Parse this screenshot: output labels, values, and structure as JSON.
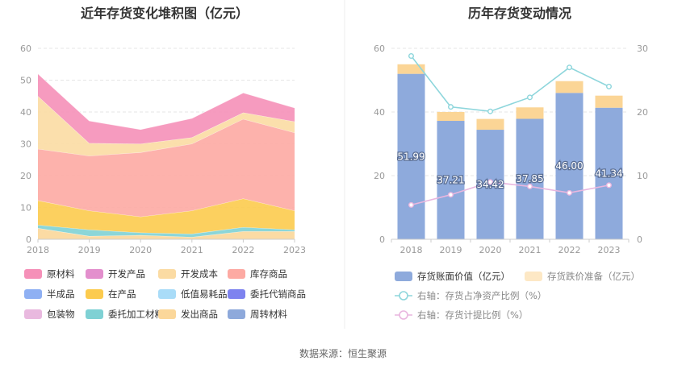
{
  "footer": {
    "source": "数据来源：恒生聚源"
  },
  "colors": {
    "原材料": "#f590b8",
    "开发产品": "#e38fcd",
    "开发成本": "#fbdba3",
    "库存商品": "#fdaaa3",
    "半成品": "#8fb0f3",
    "在产品": "#fccb4e",
    "低值易耗品": "#a9dcf8",
    "委托代销商品": "#7e83ef",
    "包装物": "#e9b9df",
    "委托加工材料": "#7fd1d4",
    "发出商品": "#fbd79a",
    "周转材料": "#8ea9db",
    "book_value": "#8eaadc",
    "impairment": "#fbd596",
    "ratio_line": "#8ed6dc",
    "provision_line": "#e9b6df",
    "divider": "#eeeeee",
    "axis": "#cccccc"
  },
  "chart_data": [
    {
      "type": "area",
      "stacked": true,
      "title": "近年存货变化堆积图（亿元）",
      "x": [
        "2018",
        "2019",
        "2020",
        "2021",
        "2022",
        "2023"
      ],
      "ylim": [
        0,
        60
      ],
      "yticks": [
        "0",
        "10",
        "20",
        "30",
        "40",
        "50",
        "60"
      ],
      "series": [
        {
          "name": "发出商品",
          "values": [
            3.5,
            1.0,
            1.3,
            0.7,
            2.5,
            2.5
          ]
        },
        {
          "name": "委托加工材料",
          "values": [
            1.0,
            2.0,
            0.8,
            1.0,
            1.3,
            0.5
          ]
        },
        {
          "name": "在产品",
          "values": [
            7.7,
            6.0,
            5.0,
            7.3,
            9.0,
            6.0
          ]
        },
        {
          "name": "库存商品",
          "values": [
            16.2,
            17.2,
            20.2,
            21.0,
            25.0,
            24.5
          ]
        },
        {
          "name": "开发成本",
          "values": [
            16.6,
            4.0,
            2.7,
            2.0,
            2.0,
            3.5
          ]
        },
        {
          "name": "原材料",
          "values": [
            7.0,
            7.0,
            4.5,
            6.0,
            6.2,
            4.3
          ]
        }
      ],
      "legend": [
        [
          "原材料",
          "开发产品",
          "开发成本",
          "库存商品"
        ],
        [
          "半成品",
          "在产品",
          "低值易耗品",
          "委托代销商品"
        ],
        [
          "包装物",
          "委托加工材料",
          "发出商品",
          "周转材料"
        ]
      ]
    },
    {
      "type": "bar",
      "stacked": true,
      "title": "历年存货变动情况",
      "categories": [
        "2018",
        "2019",
        "2020",
        "2021",
        "2022",
        "2023"
      ],
      "ylim": [
        0,
        60
      ],
      "yticks": [
        "0",
        "20",
        "40",
        "60"
      ],
      "y2lim": [
        0,
        30
      ],
      "y2ticks": [
        "0",
        "10",
        "20",
        "30"
      ],
      "series": [
        {
          "name": "存货账面价值（亿元）",
          "values": [
            51.99,
            37.21,
            34.42,
            37.85,
            46.0,
            41.34
          ],
          "labels": [
            "51.99",
            "37.21",
            "34.42",
            "37.85",
            "46.00",
            "41.34"
          ]
        },
        {
          "name": "存货跌价准备（亿元）",
          "values": [
            3.0,
            2.8,
            3.4,
            3.6,
            3.7,
            3.8
          ]
        }
      ],
      "lines": [
        {
          "name": "右轴：存货占净资产比例（%）",
          "axis": "right",
          "values": [
            28.8,
            20.8,
            20.1,
            22.3,
            27.0,
            24.0
          ]
        },
        {
          "name": "右轴：存货计提比例（%）",
          "axis": "right",
          "values": [
            5.4,
            7.0,
            9.0,
            8.3,
            7.3,
            8.5
          ]
        }
      ]
    }
  ]
}
